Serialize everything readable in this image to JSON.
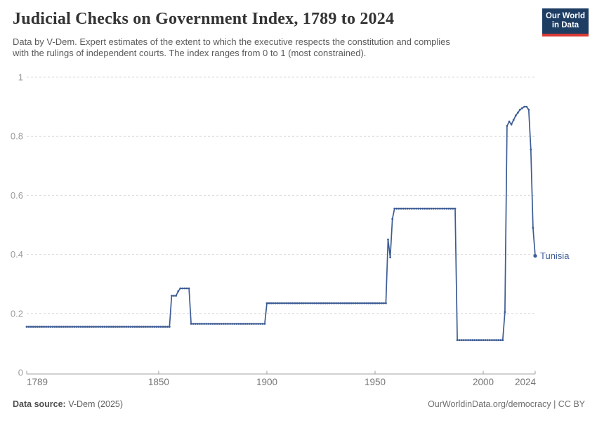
{
  "header": {
    "title": "Judicial Checks on Government Index, 1789 to 2024",
    "subtitle": {
      "line1": "Data by V-Dem. Expert estimates of the extent to which the executive respects the constitution and complies",
      "line2": "with the rulings of independent courts. The index ranges from 0 to 1 (most constrained)."
    },
    "logo": {
      "line1": "Our World",
      "line2": "in Data",
      "bg_color": "#1d3d63",
      "stripe_color": "#d93a35"
    }
  },
  "chart_data": {
    "type": "line",
    "title": "Judicial Checks on Government Index, 1789 to 2024",
    "xlabel": "",
    "ylabel": "",
    "xlim": [
      1789,
      2024
    ],
    "ylim": [
      0,
      1
    ],
    "grid": "dashed-horizontal",
    "legend_position": "end-of-line",
    "line_color": "#3d5c94",
    "yticks": [
      {
        "value": 0,
        "label": "0"
      },
      {
        "value": 0.2,
        "label": "0.2"
      },
      {
        "value": 0.4,
        "label": "0.4"
      },
      {
        "value": 0.6,
        "label": "0.6"
      },
      {
        "value": 0.8,
        "label": "0.8"
      },
      {
        "value": 1,
        "label": "1"
      }
    ],
    "xticks": [
      {
        "value": 1789,
        "label": "1789"
      },
      {
        "value": 1850,
        "label": "1850"
      },
      {
        "value": 1900,
        "label": "1900"
      },
      {
        "value": 1950,
        "label": "1950"
      },
      {
        "value": 2000,
        "label": "2000"
      },
      {
        "value": 2024,
        "label": "2024"
      }
    ],
    "series": [
      {
        "name": "Tunisia",
        "segments_note": "each segment = [startYear, endYear, indexValue]; one data point per year",
        "segments": [
          [
            1789,
            1855,
            0.155
          ],
          [
            1856,
            1858,
            0.26
          ],
          [
            1859,
            1859,
            0.275
          ],
          [
            1860,
            1864,
            0.285
          ],
          [
            1865,
            1899,
            0.165
          ],
          [
            1900,
            1955,
            0.235
          ],
          [
            1956,
            1956,
            0.45
          ],
          [
            1957,
            1957,
            0.39
          ],
          [
            1958,
            1958,
            0.52
          ],
          [
            1959,
            1987,
            0.555
          ],
          [
            1988,
            2009,
            0.11
          ],
          [
            2010,
            2010,
            0.205
          ],
          [
            2011,
            2011,
            0.835
          ],
          [
            2012,
            2012,
            0.85
          ],
          [
            2013,
            2013,
            0.84
          ],
          [
            2014,
            2014,
            0.855
          ],
          [
            2015,
            2015,
            0.87
          ],
          [
            2016,
            2016,
            0.88
          ],
          [
            2017,
            2017,
            0.89
          ],
          [
            2018,
            2018,
            0.895
          ],
          [
            2019,
            2019,
            0.9
          ],
          [
            2020,
            2020,
            0.9
          ],
          [
            2021,
            2021,
            0.89
          ],
          [
            2022,
            2022,
            0.755
          ],
          [
            2023,
            2023,
            0.49
          ],
          [
            2024,
            2024,
            0.395
          ]
        ]
      }
    ]
  },
  "footer": {
    "source_label": "Data source:",
    "source_value": " V-Dem (2025)",
    "credit": "OurWorldinData.org/democracy | CC BY"
  }
}
